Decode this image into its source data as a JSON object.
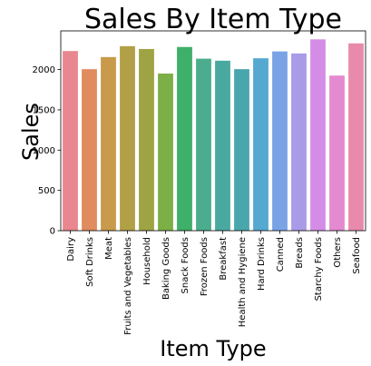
{
  "chart_data": {
    "type": "bar",
    "title": "Sales By Item Type",
    "xlabel": "Item Type",
    "ylabel": "Sales",
    "ylim": [
      0,
      2480
    ],
    "yticks": [
      0,
      500,
      1000,
      1500,
      2000
    ],
    "grid": false,
    "categories": [
      "Dairy",
      "Soft Drinks",
      "Meat",
      "Fruits and Vegetables",
      "Household",
      "Baking Goods",
      "Snack Foods",
      "Frozen Foods",
      "Breakfast",
      "Health and Hygiene",
      "Hard Drinks",
      "Canned",
      "Breads",
      "Starchy Foods",
      "Others",
      "Seafood"
    ],
    "values": [
      2230,
      2005,
      2155,
      2290,
      2255,
      1950,
      2280,
      2135,
      2110,
      2005,
      2140,
      2225,
      2200,
      2375,
      1925,
      2325
    ],
    "colors": [
      "#e8878f",
      "#e08c5f",
      "#c99a4b",
      "#b2a046",
      "#9ea443",
      "#7caf46",
      "#3eb069",
      "#4cad8e",
      "#4aa99f",
      "#4aa6ad",
      "#55a8d0",
      "#7aa3e6",
      "#a99be8",
      "#d48de7",
      "#e48ad0",
      "#e78aac"
    ]
  }
}
